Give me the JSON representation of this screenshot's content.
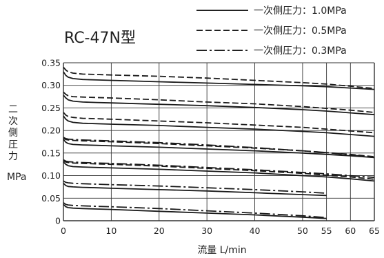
{
  "chart_data": {
    "type": "line",
    "title": "RC-47N型",
    "xlabel": "流量  L/min",
    "ylabel_chars": [
      "二",
      "次",
      "側",
      "圧",
      "力"
    ],
    "ylabel_unit": "MPa",
    "xlim": [
      0,
      65
    ],
    "ylim": [
      0,
      0.35
    ],
    "xticks": [
      0,
      10,
      20,
      30,
      40,
      50,
      55,
      60,
      65
    ],
    "yticks": [
      0,
      0.05,
      0.1,
      0.15,
      0.2,
      0.25,
      0.3,
      0.35
    ],
    "ytick_labels": [
      "0",
      "0.05",
      "0.10",
      "0.15",
      "0.20",
      "0.25",
      "0.30",
      "0.35"
    ],
    "grid": true,
    "legend": [
      {
        "key": "p10",
        "label": "一次側圧力：1.0MPa",
        "style": "solid"
      },
      {
        "key": "p05",
        "label": "一次側圧力：0.5MPa",
        "style": "dashed"
      },
      {
        "key": "p03",
        "label": "一次側圧力：0.3MPa",
        "style": "dashdot"
      }
    ],
    "series": [
      {
        "set": "0.35",
        "pressure": "p05",
        "x": [
          0,
          0.5,
          1,
          2,
          4,
          7,
          10,
          20,
          30,
          40,
          50,
          55,
          60,
          65
        ],
        "y": [
          0.34,
          0.334,
          0.33,
          0.327,
          0.325,
          0.324,
          0.323,
          0.32,
          0.316,
          0.311,
          0.306,
          0.303,
          0.298,
          0.293
        ]
      },
      {
        "set": "0.35",
        "pressure": "p10",
        "x": [
          0,
          0.5,
          1,
          2,
          4,
          7,
          10,
          20,
          30,
          40,
          50,
          55,
          60,
          65
        ],
        "y": [
          0.33,
          0.322,
          0.318,
          0.315,
          0.313,
          0.312,
          0.311,
          0.308,
          0.305,
          0.302,
          0.299,
          0.297,
          0.294,
          0.291
        ]
      },
      {
        "set": "0.30",
        "pressure": "p05",
        "x": [
          0,
          0.5,
          1,
          2,
          4,
          7,
          10,
          20,
          30,
          40,
          50,
          55,
          60,
          65
        ],
        "y": [
          0.285,
          0.28,
          0.277,
          0.275,
          0.274,
          0.273,
          0.272,
          0.268,
          0.263,
          0.259,
          0.253,
          0.249,
          0.245,
          0.24
        ]
      },
      {
        "set": "0.30",
        "pressure": "p10",
        "x": [
          0,
          0.5,
          1,
          2,
          4,
          7,
          10,
          20,
          30,
          40,
          50,
          55,
          60,
          65
        ],
        "y": [
          0.278,
          0.272,
          0.268,
          0.265,
          0.263,
          0.262,
          0.261,
          0.258,
          0.255,
          0.251,
          0.246,
          0.243,
          0.239,
          0.235
        ]
      },
      {
        "set": "0.25",
        "pressure": "p05",
        "x": [
          0,
          0.5,
          1,
          2,
          4,
          7,
          10,
          20,
          30,
          40,
          50,
          55,
          60,
          65
        ],
        "y": [
          0.24,
          0.234,
          0.231,
          0.229,
          0.227,
          0.226,
          0.225,
          0.221,
          0.217,
          0.212,
          0.207,
          0.203,
          0.199,
          0.195
        ]
      },
      {
        "set": "0.25",
        "pressure": "p10",
        "x": [
          0,
          0.5,
          1,
          2,
          4,
          7,
          10,
          20,
          30,
          40,
          50,
          55,
          60,
          65
        ],
        "y": [
          0.232,
          0.225,
          0.221,
          0.218,
          0.216,
          0.215,
          0.214,
          0.211,
          0.207,
          0.203,
          0.198,
          0.195,
          0.191,
          0.187
        ]
      },
      {
        "set": "0.20",
        "pressure": "p03",
        "x": [
          0,
          0.5,
          1,
          2,
          4,
          7,
          10,
          20,
          30,
          40,
          50,
          55,
          60,
          65
        ],
        "y": [
          0.185,
          0.182,
          0.181,
          0.18,
          0.179,
          0.178,
          0.177,
          0.173,
          0.168,
          0.162,
          0.155,
          0.151,
          0.146,
          0.14
        ]
      },
      {
        "set": "0.20",
        "pressure": "p05",
        "x": [
          0,
          0.5,
          1,
          2,
          4,
          7,
          10,
          20,
          30,
          40,
          50,
          55,
          60,
          65
        ],
        "y": [
          0.183,
          0.18,
          0.179,
          0.178,
          0.177,
          0.176,
          0.175,
          0.171,
          0.166,
          0.161,
          0.155,
          0.151,
          0.147,
          0.142
        ]
      },
      {
        "set": "0.20",
        "pressure": "p10",
        "x": [
          0,
          0.5,
          1,
          2,
          4,
          7,
          10,
          20,
          30,
          40,
          50,
          55,
          60,
          65
        ],
        "y": [
          0.18,
          0.174,
          0.171,
          0.169,
          0.168,
          0.167,
          0.166,
          0.163,
          0.159,
          0.155,
          0.15,
          0.147,
          0.144,
          0.14
        ]
      },
      {
        "set": "0.15",
        "pressure": "p03",
        "x": [
          0,
          0.5,
          1,
          2,
          4,
          7,
          10,
          20,
          30,
          40,
          50,
          55,
          60,
          65
        ],
        "y": [
          0.135,
          0.132,
          0.131,
          0.13,
          0.129,
          0.128,
          0.127,
          0.123,
          0.118,
          0.113,
          0.107,
          0.104,
          0.1,
          0.096
        ]
      },
      {
        "set": "0.15",
        "pressure": "p05",
        "x": [
          0,
          0.5,
          1,
          2,
          4,
          7,
          10,
          20,
          30,
          40,
          50,
          55,
          60,
          65
        ],
        "y": [
          0.133,
          0.13,
          0.129,
          0.128,
          0.127,
          0.126,
          0.125,
          0.121,
          0.116,
          0.111,
          0.105,
          0.101,
          0.097,
          0.092
        ]
      },
      {
        "set": "0.15",
        "pressure": "p10",
        "x": [
          0,
          0.5,
          1,
          2,
          4,
          7,
          10,
          20,
          30,
          40,
          50,
          55,
          60,
          65
        ],
        "y": [
          0.13,
          0.125,
          0.122,
          0.12,
          0.119,
          0.118,
          0.117,
          0.114,
          0.11,
          0.106,
          0.1,
          0.097,
          0.093,
          0.088
        ]
      },
      {
        "set": "0.10",
        "pressure": "p03",
        "x": [
          0,
          0.5,
          1,
          2,
          4,
          7,
          10,
          20,
          30,
          40,
          50,
          55
        ],
        "y": [
          0.088,
          0.085,
          0.084,
          0.083,
          0.082,
          0.081,
          0.08,
          0.077,
          0.073,
          0.069,
          0.064,
          0.061
        ]
      },
      {
        "set": "0.10",
        "pressure": "p10",
        "x": [
          0,
          0.5,
          1,
          2,
          4,
          7,
          10,
          20,
          30,
          40,
          50,
          55
        ],
        "y": [
          0.083,
          0.078,
          0.076,
          0.075,
          0.074,
          0.073,
          0.072,
          0.069,
          0.066,
          0.062,
          0.058,
          0.056
        ]
      },
      {
        "set": "0.05",
        "pressure": "p03",
        "x": [
          0,
          0.5,
          1,
          2,
          4,
          7,
          10,
          20,
          30,
          40,
          50,
          55
        ],
        "y": [
          0.04,
          0.036,
          0.035,
          0.034,
          0.033,
          0.032,
          0.031,
          0.027,
          0.022,
          0.017,
          0.011,
          0.007
        ]
      },
      {
        "set": "0.05",
        "pressure": "p10",
        "x": [
          0,
          0.5,
          1,
          2,
          4,
          7,
          10,
          20,
          30,
          40,
          50,
          55
        ],
        "y": [
          0.036,
          0.031,
          0.029,
          0.028,
          0.027,
          0.026,
          0.025,
          0.021,
          0.017,
          0.013,
          0.008,
          0.005
        ]
      }
    ]
  }
}
